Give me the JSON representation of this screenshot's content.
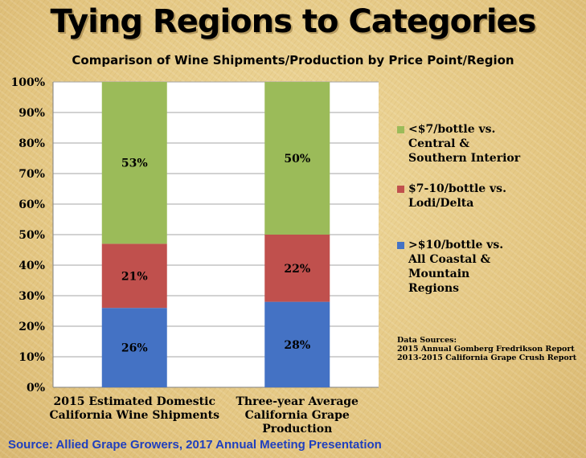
{
  "slide": {
    "title": "Tying Regions to Categories",
    "source": "Source: Allied Grape Growers, 2017 Annual Meeting Presentation"
  },
  "chart_data": {
    "type": "bar",
    "stacked": true,
    "percent": true,
    "title": "Comparison of Wine Shipments/Production by Price Point/Region",
    "categories": [
      [
        "2015 Estimated Domestic",
        "California Wine Shipments"
      ],
      [
        "Three-year Average",
        "California Grape",
        "Production"
      ]
    ],
    "series": [
      {
        "name": ">$10/bottle vs. All Coastal & Mountain Regions",
        "values": [
          26,
          28
        ],
        "labels": [
          "26%",
          "28%"
        ],
        "color": "#4472c4"
      },
      {
        "name": "$7-10/bottle vs. Lodi/Delta",
        "values": [
          21,
          22
        ],
        "labels": [
          "21%",
          "22%"
        ],
        "color": "#c0504d"
      },
      {
        "name": "<$7/bottle vs. Central & Southern Interior",
        "values": [
          53,
          50
        ],
        "labels": [
          "53%",
          "50%"
        ],
        "color": "#9bbb59"
      }
    ],
    "ylim": [
      0,
      100
    ],
    "yticks": [
      "0%",
      "10%",
      "20%",
      "30%",
      "40%",
      "50%",
      "60%",
      "70%",
      "80%",
      "90%",
      "100%"
    ],
    "grid": true,
    "legend": "right",
    "xlabel": "",
    "ylabel": ""
  },
  "legend": [
    {
      "text": "<$7/bottle vs.\nCentral &\nSouthern Interior",
      "color": "#9bbb59"
    },
    {
      "text": "$7-10/bottle vs.\nLodi/Delta",
      "color": "#c0504d"
    },
    {
      "text": ">$10/bottle vs.\nAll Coastal &\nMountain\nRegions",
      "color": "#4472c4"
    }
  ],
  "data_sources": {
    "heading": "Data Sources:",
    "lines": [
      "2015 Annual Gomberg Fredrikson Report",
      "2013-2015 California Grape Crush Report"
    ]
  }
}
